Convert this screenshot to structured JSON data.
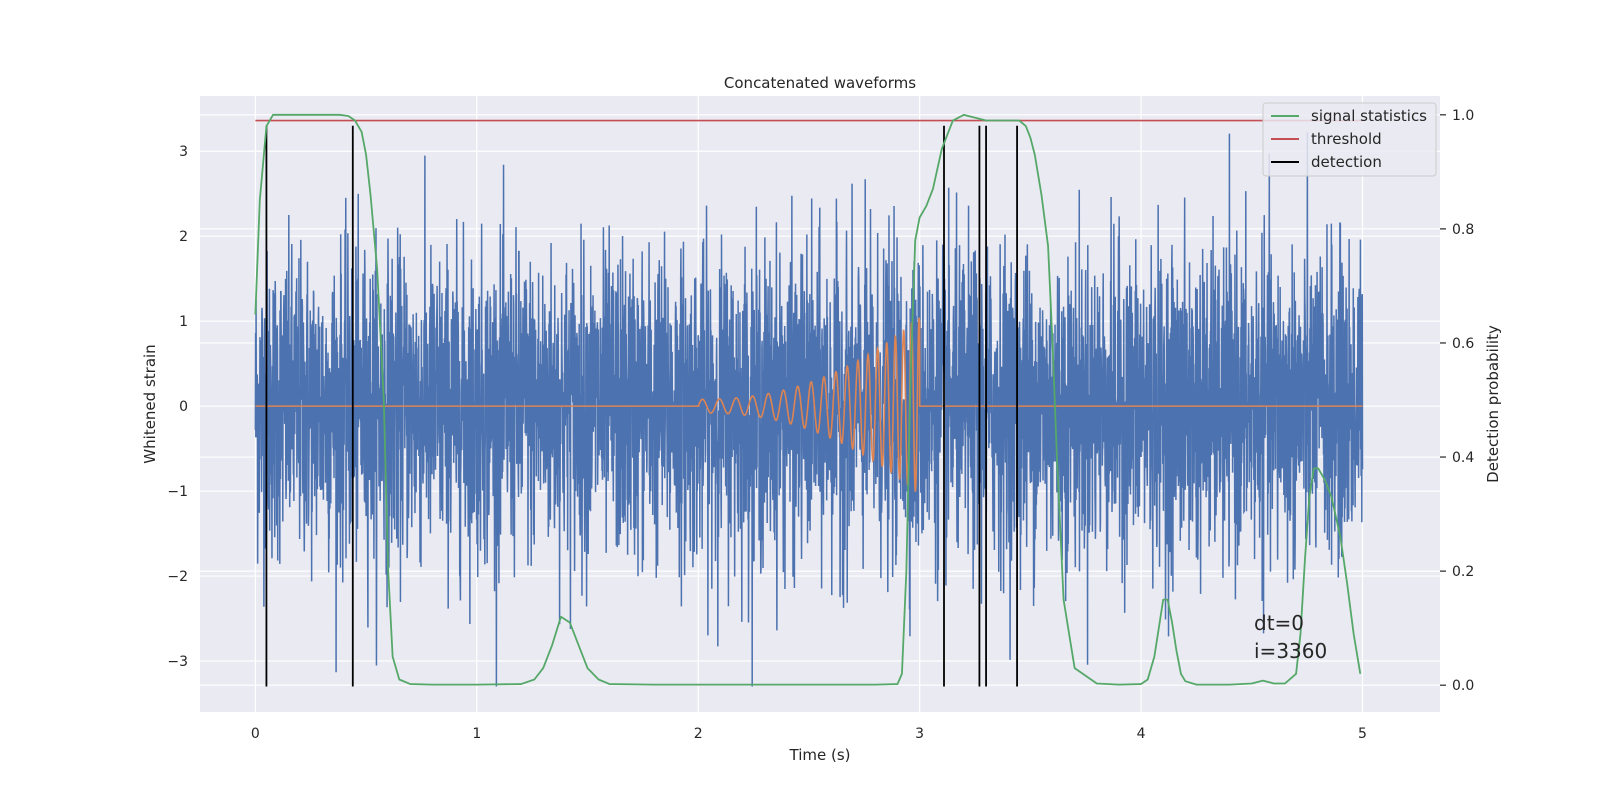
{
  "chart_data": {
    "type": "line",
    "title": "Concatenated waveforms",
    "xlabel": "Time (s)",
    "ylabel": "Whitened strain",
    "y2label": "Detection probability",
    "xlim": [
      -0.25,
      5.35
    ],
    "ylim": [
      -3.6,
      3.65
    ],
    "y2lim": [
      -0.047,
      1.033
    ],
    "xticks": [
      0,
      1,
      2,
      3,
      4,
      5
    ],
    "xtick_labels": [
      "0",
      "1",
      "2",
      "3",
      "4",
      "5"
    ],
    "yticks": [
      -3,
      -2,
      -1,
      0,
      1,
      2,
      3
    ],
    "ytick_labels": [
      "−3",
      "−2",
      "−1",
      "0",
      "1",
      "2",
      "3"
    ],
    "y2ticks": [
      0.0,
      0.2,
      0.4,
      0.6,
      0.8,
      1.0
    ],
    "y2tick_labels": [
      "0.0",
      "0.2",
      "0.4",
      "0.6",
      "0.8",
      "1.0"
    ],
    "grid": true,
    "legend_position": "top-right",
    "legend": [
      {
        "label": "signal statistics",
        "color": "#55a868"
      },
      {
        "label": "threshold",
        "color": "#c44e52"
      },
      {
        "label": "detection",
        "color": "#000000"
      }
    ],
    "annotations": [
      "dt=0",
      "i=3360"
    ],
    "colors": {
      "strain": "#4c72b0",
      "injection": "#dd8452",
      "statistic": "#55a868",
      "threshold": "#c44e52",
      "detection": "#000000",
      "plot_background": "#eaeaf2",
      "grid": "#ffffff"
    },
    "series": [
      {
        "axis": "right",
        "x": [
          0.0,
          0.02,
          0.05,
          0.08,
          0.12,
          0.2,
          0.3,
          0.38,
          0.42,
          0.45,
          0.48,
          0.5,
          0.52,
          0.55,
          0.58,
          0.6,
          0.62,
          0.65,
          0.7,
          0.8,
          1.0,
          1.2,
          1.26,
          1.3,
          1.34,
          1.38,
          1.42,
          1.46,
          1.5,
          1.55,
          1.6,
          1.8,
          2.0,
          2.5,
          2.8,
          2.9,
          2.92,
          2.94,
          2.96,
          2.98,
          3.0,
          3.03,
          3.06,
          3.1,
          3.15,
          3.2,
          3.3,
          3.4,
          3.45,
          3.48,
          3.5,
          3.52,
          3.55,
          3.58,
          3.6,
          3.62,
          3.65,
          3.7,
          3.8,
          3.9,
          4.0,
          4.03,
          4.06,
          4.1,
          4.12,
          4.14,
          4.16,
          4.18,
          4.2,
          4.25,
          4.3,
          4.4,
          4.5,
          4.55,
          4.6,
          4.65,
          4.7,
          4.72,
          4.74,
          4.76,
          4.78,
          4.8,
          4.83,
          4.86,
          4.9,
          4.93,
          4.96,
          4.99
        ],
        "y": [
          0.65,
          0.85,
          0.98,
          1.0,
          1.0,
          1.0,
          1.0,
          1.0,
          0.998,
          0.99,
          0.97,
          0.93,
          0.86,
          0.73,
          0.5,
          0.2,
          0.05,
          0.01,
          0.002,
          0.001,
          0.001,
          0.002,
          0.01,
          0.03,
          0.07,
          0.12,
          0.11,
          0.07,
          0.03,
          0.01,
          0.002,
          0.001,
          0.001,
          0.001,
          0.001,
          0.002,
          0.02,
          0.2,
          0.55,
          0.78,
          0.82,
          0.84,
          0.87,
          0.94,
          0.99,
          1.0,
          0.99,
          0.99,
          0.99,
          0.98,
          0.96,
          0.93,
          0.86,
          0.77,
          0.6,
          0.4,
          0.15,
          0.03,
          0.003,
          0.001,
          0.002,
          0.01,
          0.05,
          0.15,
          0.15,
          0.11,
          0.06,
          0.02,
          0.007,
          0.001,
          0.001,
          0.001,
          0.003,
          0.008,
          0.003,
          0.003,
          0.02,
          0.09,
          0.22,
          0.33,
          0.38,
          0.38,
          0.36,
          0.33,
          0.26,
          0.18,
          0.09,
          0.02
        ],
        "name": "signal statistics",
        "style": "line"
      },
      {
        "axis": "right",
        "x": [
          0.0,
          5.0
        ],
        "y": [
          0.99,
          0.99
        ],
        "name": "threshold",
        "style": "line"
      },
      {
        "axis": "left",
        "x": [
          0.05,
          0.44,
          3.11,
          3.27,
          3.3,
          3.44
        ],
        "name": "detection",
        "style": "vline",
        "y0": -3.3,
        "y1": 3.3
      },
      {
        "axis": "left",
        "x_start": 2.0,
        "x_end": 3.0,
        "amp_start": 0.08,
        "amp_end": 1.05,
        "style": "chirp"
      },
      {
        "axis": "left",
        "x_start": 0.0,
        "x_end": 5.0,
        "sigma": 0.9,
        "spike_max": 3.3,
        "spike_min": -3.3,
        "style": "noise"
      }
    ]
  }
}
